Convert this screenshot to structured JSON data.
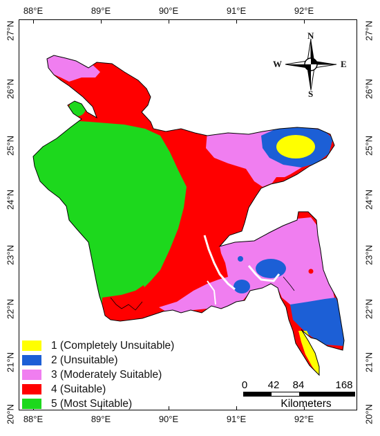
{
  "longitude_ticks": [
    "88°E",
    "89°E",
    "90°E",
    "91°E",
    "92°E"
  ],
  "latitude_ticks": [
    "27°N",
    "26°N",
    "25°N",
    "24°N",
    "23°N",
    "22°N",
    "21°N",
    "20°N"
  ],
  "compass": {
    "north": "N",
    "south": "S",
    "east": "E",
    "west": "W"
  },
  "legend": [
    {
      "label": "1 (Completely Unsuitable)",
      "color": "#ffff00"
    },
    {
      "label": "2 (Unsuitable)",
      "color": "#1c5fd6"
    },
    {
      "label": "3 (Moderately Suitable)",
      "color": "#f07ef0"
    },
    {
      "label": "4 (Suitable)",
      "color": "#ff0000"
    },
    {
      "label": "5 (Most Suitable)",
      "color": "#1dd81d"
    }
  ],
  "scale_bar": {
    "ticks": [
      "0",
      "42",
      "84",
      "168"
    ],
    "unit": "Kilometers"
  }
}
